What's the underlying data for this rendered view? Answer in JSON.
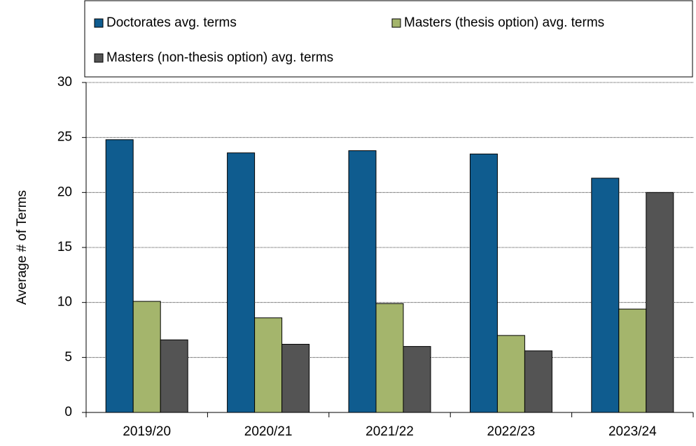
{
  "chart_data": {
    "type": "bar",
    "y_label": "Average # of Terms",
    "categories": [
      "2019/20",
      "2020/21",
      "2021/22",
      "2022/23",
      "2023/24"
    ],
    "series": [
      {
        "name": "Doctorates avg. terms",
        "color": "#0f5c8f",
        "values": [
          24.8,
          23.6,
          23.8,
          23.5,
          21.3
        ]
      },
      {
        "name": "Masters (thesis option) avg. terms",
        "color": "#a4b56c",
        "values": [
          10.1,
          8.6,
          9.9,
          7.0,
          9.4
        ]
      },
      {
        "name": "Masters (non-thesis option) avg. terms",
        "color": "#545454",
        "values": [
          6.6,
          6.2,
          6.0,
          5.6,
          20.0
        ]
      }
    ],
    "ylim": [
      0,
      30
    ],
    "yticks": [
      0,
      5,
      10,
      15,
      20,
      25,
      30
    ],
    "grid": true,
    "legend": "top"
  }
}
